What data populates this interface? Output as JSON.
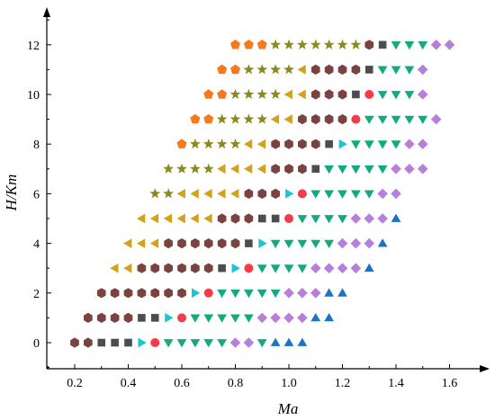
{
  "chart_data": {
    "type": "scatter",
    "title": "",
    "xlabel": "Ma",
    "ylabel": "H/Km",
    "xlim": [
      0.15,
      1.7
    ],
    "ylim": [
      -1,
      13
    ],
    "xticks": [
      "0.2",
      "0.4",
      "0.6",
      "0.8",
      "1.0",
      "1.2",
      "1.4",
      "1.6"
    ],
    "yticks": [
      "0",
      "2",
      "4",
      "6",
      "8",
      "10",
      "12"
    ],
    "grid": false,
    "legend": "none",
    "marker_styles": {
      "P": {
        "shape": "pentagon",
        "color": "#f57a1f"
      },
      "S": {
        "shape": "star",
        "color": "#8c8a1e"
      },
      "L": {
        "shape": "triangle-left",
        "color": "#d4a21a"
      },
      "H": {
        "shape": "hexagon",
        "color": "#7a4340"
      },
      "Q": {
        "shape": "square",
        "color": "#4d4d4d"
      },
      "R": {
        "shape": "triangle-right",
        "color": "#1fc4d4"
      },
      "C": {
        "shape": "circle",
        "color": "#f43b4a"
      },
      "V": {
        "shape": "triangle-down",
        "color": "#13ab7d"
      },
      "D": {
        "shape": "diamond",
        "color": "#b67fd9"
      },
      "U": {
        "shape": "triangle-up",
        "color": "#1a73c7"
      }
    },
    "rows": [
      {
        "H": 0,
        "start": 0.2,
        "codes": "HHQQQRCVVVVVDDVUUU"
      },
      {
        "H": 1,
        "start": 0.25,
        "codes": "HHHHQQRCVVVVVDDDDUU"
      },
      {
        "H": 2,
        "start": 0.3,
        "codes": "HHHHHHHRCVVVVVDDDUU"
      },
      {
        "H": 3,
        "start": 0.35,
        "codes": "LLHHHHHHQRCVVVVDDDDU"
      },
      {
        "H": 4,
        "start": 0.4,
        "codes": "LLLHHHHHHQRVVVVVDDDU"
      },
      {
        "H": 5,
        "start": 0.45,
        "codes": "LLLLLLHHHQQCVVVVDDDU"
      },
      {
        "H": 6,
        "start": 0.5,
        "codes": "SSLLLLLHHHRCVVVVVDD"
      },
      {
        "H": 7,
        "start": 0.55,
        "codes": "SSSSLLLLHHHQVVVVVDDD"
      },
      {
        "H": 8,
        "start": 0.6,
        "codes": "PSSSSLLHHHHQRVVVVDD"
      },
      {
        "H": 9,
        "start": 0.65,
        "codes": "PPSSSSLLHHHHCVVVVVD"
      },
      {
        "H": 10,
        "start": 0.7,
        "codes": "PPSSSSLLHHHQCVVVD"
      },
      {
        "H": 11,
        "start": 0.75,
        "codes": "PPSSSSLHHHHQVVVD"
      },
      {
        "H": 12,
        "start": 0.8,
        "codes": "PPPSSSSSSSHQVVVDD"
      }
    ]
  }
}
